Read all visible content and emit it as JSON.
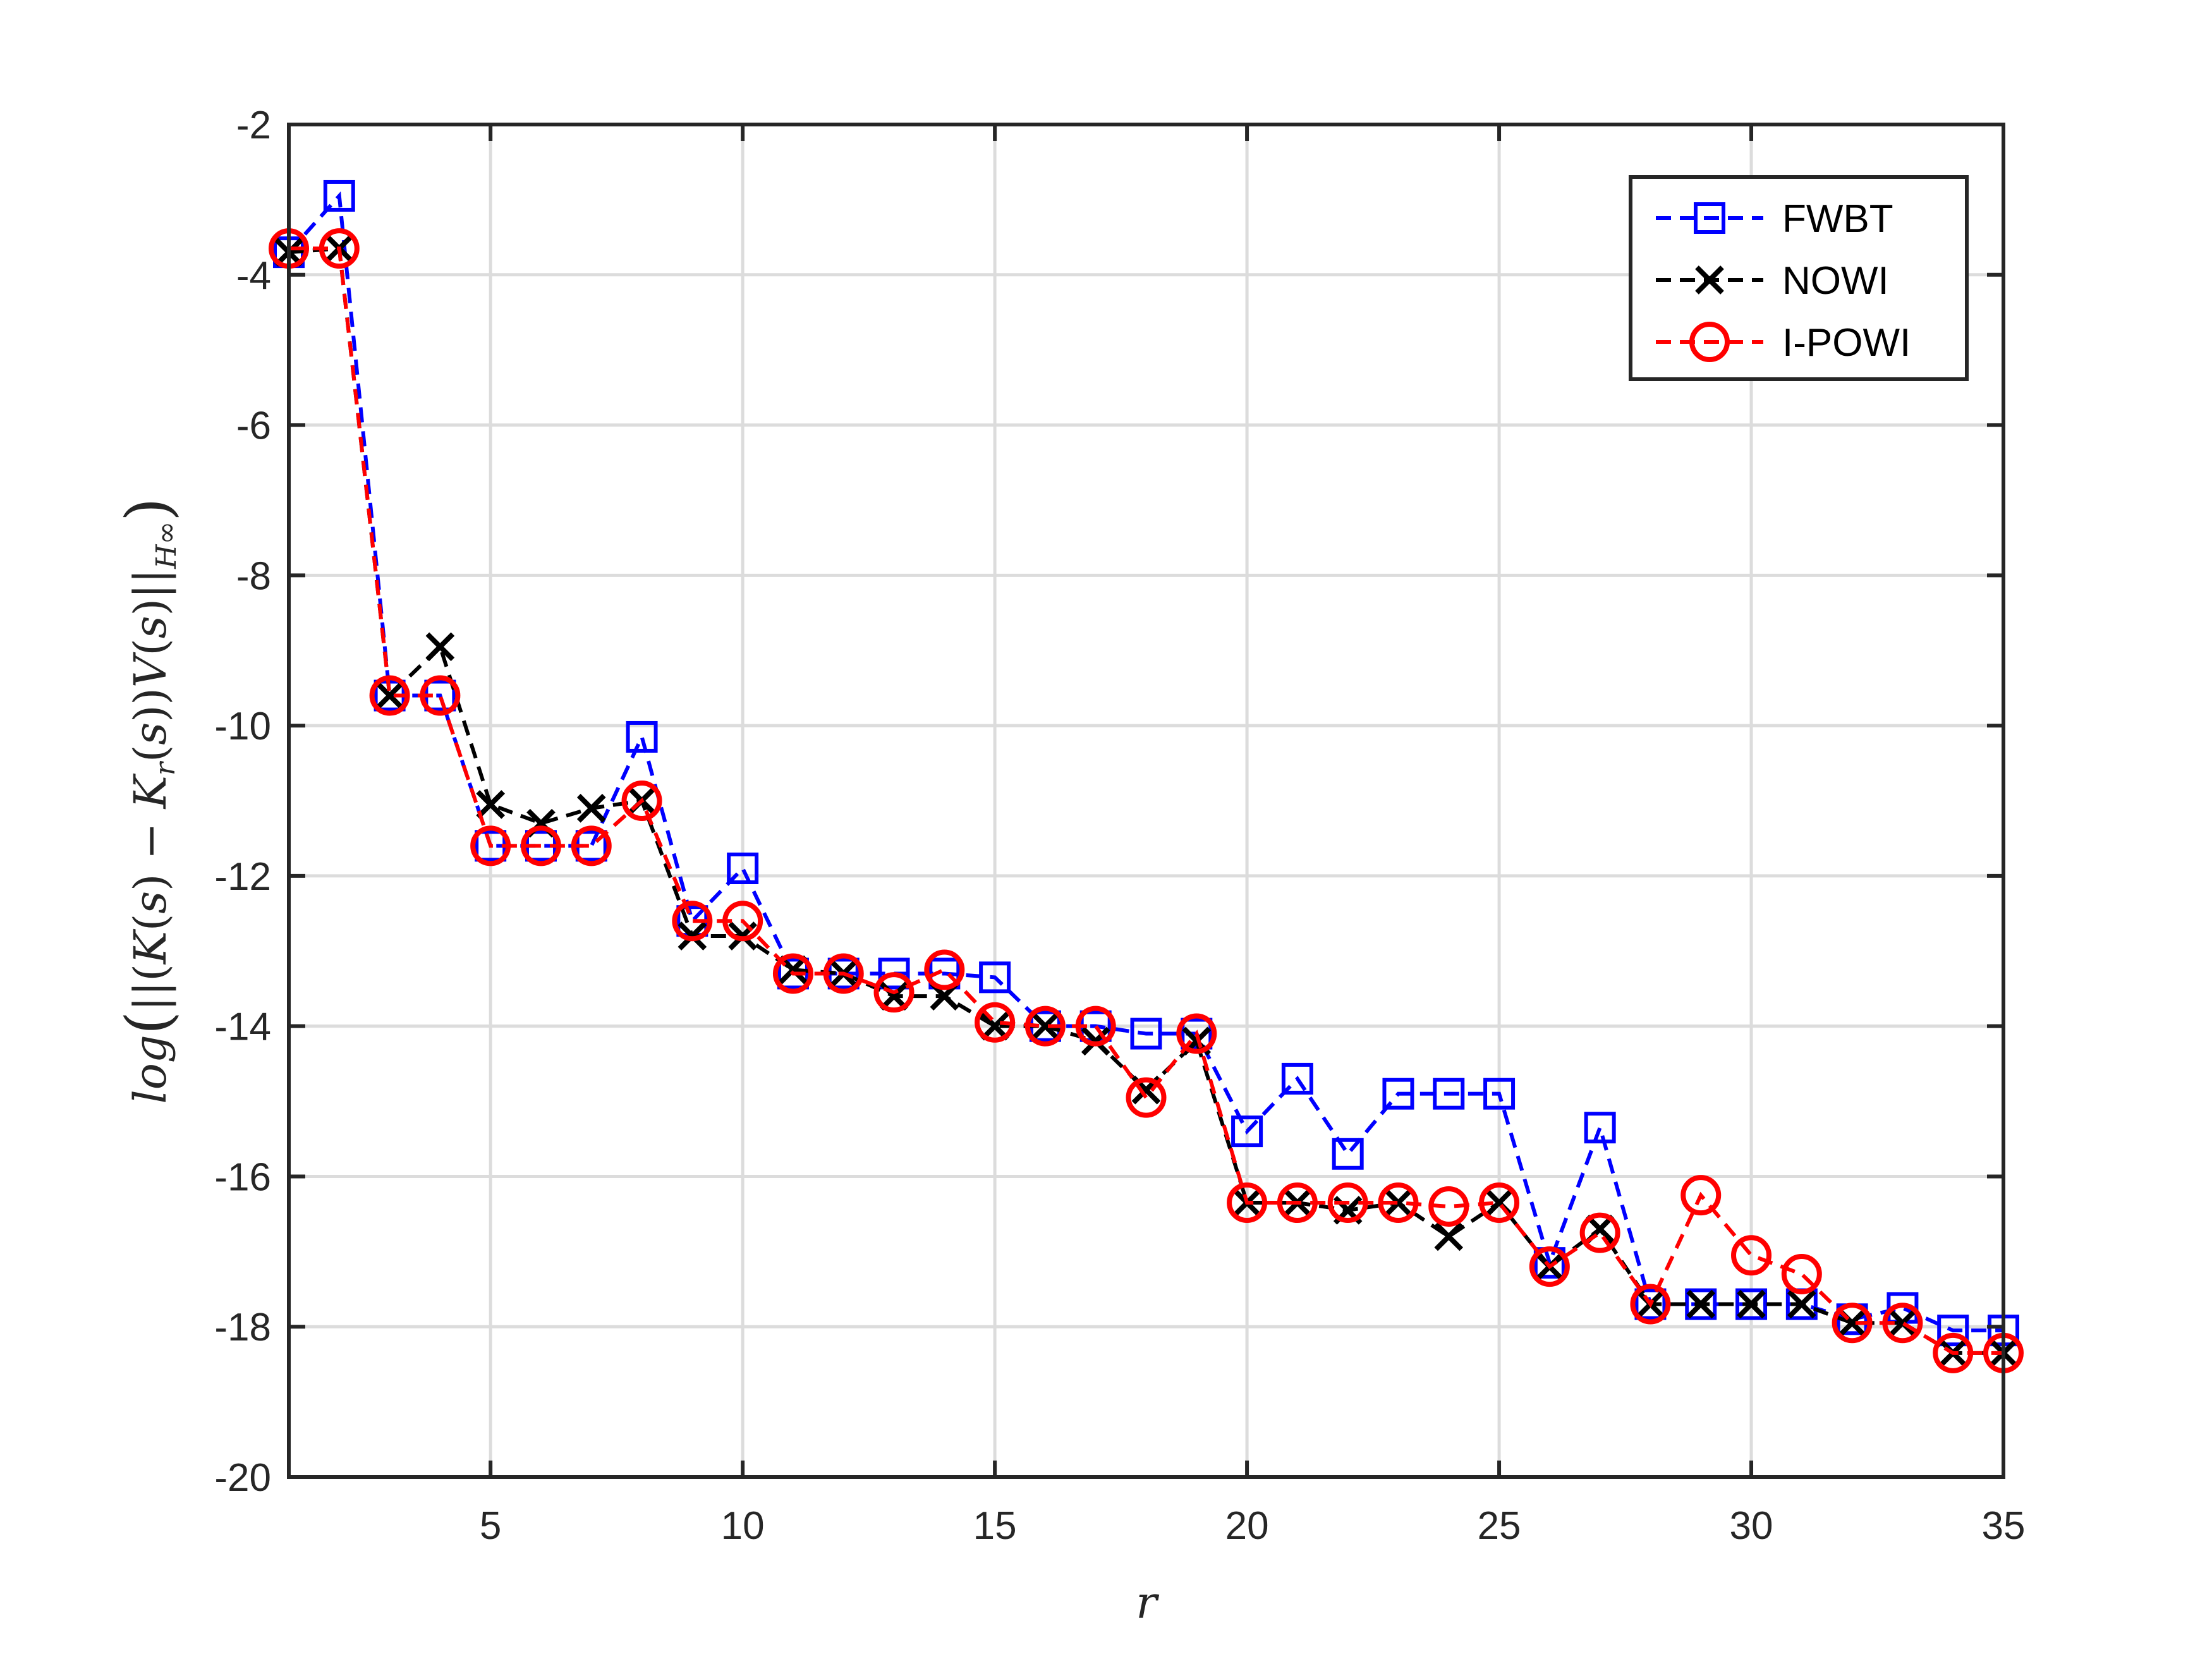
{
  "chart_data": {
    "type": "line",
    "xlabel": "r",
    "ylabel": "log(||(K(s) − K_r(s))V(s)||_H∞)",
    "xlim": [
      1,
      35
    ],
    "ylim": [
      -20,
      -2
    ],
    "x_ticks": [
      5,
      10,
      15,
      20,
      25,
      30,
      35
    ],
    "y_ticks": [
      -2,
      -4,
      -6,
      -8,
      -10,
      -12,
      -14,
      -16,
      -18,
      -20
    ],
    "x_tick_labels": [
      "5",
      "10",
      "15",
      "20",
      "25",
      "30",
      "35"
    ],
    "y_tick_labels": [
      "-2",
      "-4",
      "-6",
      "-8",
      "-10",
      "-12",
      "-14",
      "-16",
      "-18",
      "-20"
    ],
    "grid": true,
    "legend_position": "top-right",
    "x": [
      1,
      2,
      3,
      4,
      5,
      6,
      7,
      8,
      9,
      10,
      11,
      12,
      13,
      14,
      15,
      16,
      17,
      18,
      19,
      20,
      21,
      22,
      23,
      24,
      25,
      26,
      27,
      28,
      29,
      30,
      31,
      32,
      33,
      34,
      35
    ],
    "series": [
      {
        "name": "FWBT",
        "color": "#0000ff",
        "marker": "square",
        "values": [
          -3.7,
          -2.95,
          -9.6,
          -9.6,
          -11.6,
          -11.6,
          -11.6,
          -10.15,
          -12.6,
          -11.9,
          -13.3,
          -13.3,
          -13.3,
          -13.3,
          -13.35,
          -14.0,
          -14.0,
          -14.1,
          -14.1,
          -15.4,
          -14.7,
          -15.7,
          -14.9,
          -14.9,
          -14.9,
          -17.15,
          -15.35,
          -17.7,
          -17.7,
          -17.7,
          -17.7,
          -17.9,
          -17.75,
          -18.05,
          -18.05
        ]
      },
      {
        "name": "NOWI",
        "color": "#000000",
        "marker": "x",
        "values": [
          -3.7,
          -3.65,
          -9.6,
          -8.95,
          -11.05,
          -11.3,
          -11.1,
          -11.0,
          -12.8,
          -12.8,
          -13.25,
          -13.3,
          -13.6,
          -13.6,
          -14.0,
          -14.0,
          -14.2,
          -14.85,
          -14.2,
          -16.35,
          -16.35,
          -16.45,
          -16.35,
          -16.8,
          -16.35,
          -17.2,
          -16.7,
          -17.7,
          -17.7,
          -17.7,
          -17.7,
          -17.95,
          -17.95,
          -18.35,
          -18.35
        ]
      },
      {
        "name": "I-POWI",
        "color": "#ff0000",
        "marker": "circle",
        "values": [
          -3.65,
          -3.65,
          -9.6,
          -9.6,
          -11.6,
          -11.6,
          -11.6,
          -11.0,
          -12.6,
          -12.6,
          -13.3,
          -13.3,
          -13.55,
          -13.25,
          -13.95,
          -14.0,
          -14.0,
          -14.95,
          -14.1,
          -16.35,
          -16.35,
          -16.35,
          -16.35,
          -16.4,
          -16.35,
          -17.2,
          -16.75,
          -17.7,
          -16.25,
          -17.05,
          -17.3,
          -17.95,
          -17.95,
          -18.35,
          -18.35
        ]
      }
    ]
  }
}
